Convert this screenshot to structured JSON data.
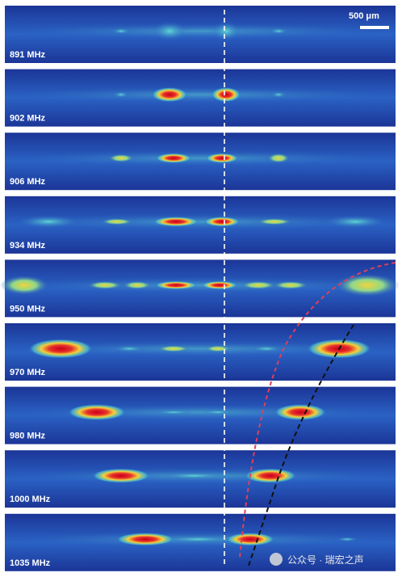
{
  "scale_bar": "500 μm",
  "panels": [
    {
      "label": "891 MHz"
    },
    {
      "label": "902 MHz"
    },
    {
      "label": "906 MHz"
    },
    {
      "label": "934 MHz"
    },
    {
      "label": "950 MHz"
    },
    {
      "label": "970 MHz"
    },
    {
      "label": "980 MHz"
    },
    {
      "label": "1000 MHz"
    },
    {
      "label": "1035 MHz"
    }
  ],
  "watermark": "公众号 · 瑞宏之声"
}
